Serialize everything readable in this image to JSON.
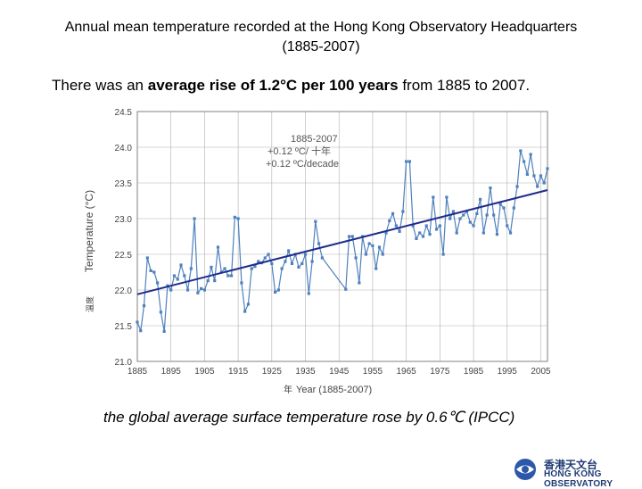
{
  "slide": {
    "title_line1": "Annual mean temperature recorded at the Hong Kong Observatory Headquarters",
    "title_line2": "(1885-2007)",
    "subtitle_part1": "There was an ",
    "subtitle_bold": "average rise of 1.2°C per 100 years",
    "subtitle_part2": " from 1885 to 2007.",
    "footnote": "the global average surface temperature rose by 0.6℃ (IPCC)",
    "logo_zh": "香港天文台",
    "logo_en": "HONG KONG OBSERVATORY"
  },
  "chart_data": {
    "type": "line",
    "ylabel": "Temperature (°C)",
    "ylabel_zh": "溫度",
    "xlabel": "Year (1885-2007)",
    "xlabel_zh": "年",
    "xlim": [
      1885,
      2007
    ],
    "ylim": [
      21.0,
      24.5
    ],
    "x_ticks": [
      1885,
      1895,
      1905,
      1915,
      1925,
      1935,
      1945,
      1955,
      1965,
      1975,
      1985,
      1995,
      2005
    ],
    "y_ticks": [
      "21.0",
      "21.5",
      "22.0",
      "22.5",
      "23.0",
      "23.5",
      "24.0",
      "24.5"
    ],
    "annotation": [
      "1885-2007",
      "+0.12 ºC/ 十年",
      "+0.12 ºC/decade"
    ],
    "colors": {
      "series": "#4f81bd",
      "trend": "#1f2c8a",
      "grid": "#b0b0b0"
    },
    "series": [
      {
        "points": [
          [
            1885,
            21.55
          ],
          [
            1886,
            21.43
          ],
          [
            1887,
            21.78
          ],
          [
            1888,
            22.45
          ],
          [
            1889,
            22.27
          ],
          [
            1890,
            22.25
          ],
          [
            1891,
            22.1
          ],
          [
            1892,
            21.69
          ],
          [
            1893,
            21.42
          ],
          [
            1894,
            22.06
          ],
          [
            1895,
            22.0
          ],
          [
            1896,
            22.2
          ],
          [
            1897,
            22.15
          ],
          [
            1898,
            22.35
          ],
          [
            1899,
            22.2
          ],
          [
            1900,
            22.0
          ],
          [
            1901,
            22.3
          ],
          [
            1902,
            23.0
          ],
          [
            1903,
            21.96
          ],
          [
            1904,
            22.02
          ],
          [
            1905,
            22.0
          ],
          [
            1906,
            22.13
          ],
          [
            1907,
            22.32
          ],
          [
            1908,
            22.13
          ],
          [
            1909,
            22.6
          ],
          [
            1910,
            22.25
          ],
          [
            1911,
            22.3
          ],
          [
            1912,
            22.2
          ],
          [
            1913,
            22.2
          ],
          [
            1914,
            23.02
          ],
          [
            1915,
            23.0
          ],
          [
            1916,
            22.1
          ],
          [
            1917,
            21.7
          ],
          [
            1918,
            21.8
          ],
          [
            1919,
            22.3
          ],
          [
            1920,
            22.33
          ],
          [
            1921,
            22.4
          ],
          [
            1922,
            22.38
          ],
          [
            1923,
            22.45
          ],
          [
            1924,
            22.5
          ],
          [
            1925,
            22.37
          ],
          [
            1926,
            21.97
          ],
          [
            1927,
            22.0
          ],
          [
            1928,
            22.3
          ],
          [
            1929,
            22.4
          ],
          [
            1930,
            22.55
          ],
          [
            1931,
            22.37
          ],
          [
            1932,
            22.5
          ],
          [
            1933,
            22.32
          ],
          [
            1934,
            22.37
          ],
          [
            1935,
            22.5
          ],
          [
            1936,
            21.95
          ],
          [
            1937,
            22.4
          ],
          [
            1938,
            22.96
          ],
          [
            1939,
            22.65
          ],
          [
            1940,
            22.45
          ],
          [
            1941,
            null
          ],
          [
            1942,
            null
          ],
          [
            1943,
            null
          ],
          [
            1944,
            null
          ],
          [
            1945,
            null
          ],
          [
            1946,
            null
          ],
          [
            1947,
            22.01
          ],
          [
            1948,
            22.75
          ],
          [
            1949,
            22.75
          ],
          [
            1950,
            22.45
          ],
          [
            1951,
            22.1
          ],
          [
            1952,
            22.75
          ],
          [
            1953,
            22.5
          ],
          [
            1954,
            22.65
          ],
          [
            1955,
            22.62
          ],
          [
            1956,
            22.3
          ],
          [
            1957,
            22.6
          ],
          [
            1958,
            22.5
          ],
          [
            1959,
            22.8
          ],
          [
            1960,
            22.97
          ],
          [
            1961,
            23.07
          ],
          [
            1962,
            22.9
          ],
          [
            1963,
            22.82
          ],
          [
            1964,
            23.1
          ],
          [
            1965,
            23.8
          ],
          [
            1966,
            23.8
          ],
          [
            1967,
            22.9
          ],
          [
            1968,
            22.72
          ],
          [
            1969,
            22.8
          ],
          [
            1970,
            22.75
          ],
          [
            1971,
            22.9
          ],
          [
            1972,
            22.78
          ],
          [
            1973,
            23.3
          ],
          [
            1974,
            22.85
          ],
          [
            1975,
            22.9
          ],
          [
            1976,
            22.5
          ],
          [
            1977,
            23.3
          ],
          [
            1978,
            23.0
          ],
          [
            1979,
            23.1
          ],
          [
            1980,
            22.8
          ],
          [
            1981,
            23.0
          ],
          [
            1982,
            23.05
          ],
          [
            1983,
            23.1
          ],
          [
            1984,
            22.95
          ],
          [
            1985,
            22.9
          ],
          [
            1986,
            23.07
          ],
          [
            1987,
            23.27
          ],
          [
            1988,
            22.8
          ],
          [
            1989,
            23.05
          ],
          [
            1990,
            23.43
          ],
          [
            1991,
            23.05
          ],
          [
            1992,
            22.78
          ],
          [
            1993,
            23.2
          ],
          [
            1994,
            23.15
          ],
          [
            1995,
            22.9
          ],
          [
            1996,
            22.8
          ],
          [
            1997,
            23.15
          ],
          [
            1998,
            23.45
          ],
          [
            1999,
            23.95
          ],
          [
            2000,
            23.8
          ],
          [
            2001,
            23.62
          ],
          [
            2002,
            23.9
          ],
          [
            2003,
            23.6
          ],
          [
            2004,
            23.45
          ],
          [
            2005,
            23.6
          ],
          [
            2006,
            23.5
          ],
          [
            2007,
            23.7
          ]
        ]
      }
    ],
    "trend": {
      "x": [
        1885,
        2007
      ],
      "y": [
        21.94,
        23.4
      ]
    }
  }
}
